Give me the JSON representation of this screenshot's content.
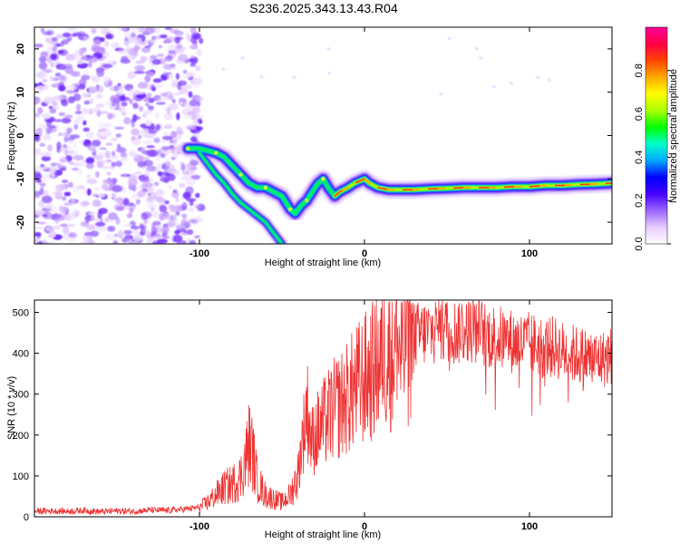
{
  "title": "S236.2025.343.13.43.R04",
  "chart_data": [
    {
      "type": "heatmap",
      "name": "spectrogram",
      "xlabel": "Height of straight line (km)",
      "ylabel": "Frequency (Hz)",
      "xlim": [
        -200,
        150
      ],
      "ylim": [
        -25,
        25
      ],
      "xticks": [
        -100,
        0,
        100
      ],
      "yticks": [
        -20,
        -10,
        0,
        10,
        20
      ],
      "colorbar": {
        "label": "Normalized spectral amplitude",
        "ticks": [
          0.0,
          0.2,
          0.4,
          0.6,
          0.8
        ],
        "range": [
          0,
          1
        ],
        "colors": [
          "#ffffff",
          "#e6ccff",
          "#9966ff",
          "#4400ff",
          "#0000ff",
          "#00aaff",
          "#00ffcc",
          "#00ff00",
          "#aaff00",
          "#ffff00",
          "#ffaa00",
          "#ff4400",
          "#ff0044",
          "#ff0099"
        ]
      },
      "ridge": {
        "x": [
          -107,
          -100,
          -95,
          -90,
          -85,
          -80,
          -75,
          -70,
          -65,
          -60,
          -55,
          -50,
          -45,
          -42,
          -38,
          -35,
          -30,
          -28,
          -25,
          -22,
          -18,
          -15,
          -10,
          -6,
          -3,
          0,
          3,
          8,
          15,
          20,
          30,
          40,
          50,
          60,
          70,
          80,
          90,
          100,
          110,
          120,
          130,
          140,
          150
        ],
        "y": [
          -3,
          -3,
          -3.5,
          -4,
          -5,
          -7,
          -9,
          -11,
          -12,
          -12,
          -13,
          -14,
          -17,
          -18,
          -16,
          -15,
          -12,
          -11,
          -10,
          -12,
          -14,
          -13,
          -12,
          -11,
          -10.5,
          -10,
          -11,
          -12,
          -12.5,
          -12.5,
          -12.5,
          -12.3,
          -12.2,
          -12,
          -12,
          -12,
          -11.8,
          -11.8,
          -11.5,
          -11.5,
          -11.3,
          -11.2,
          -11
        ]
      },
      "branch": {
        "x": [
          -100,
          -95,
          -90,
          -85,
          -80,
          -75,
          -70,
          -65,
          -60,
          -55,
          -50
        ],
        "y": [
          -4,
          -6.5,
          -9,
          -11,
          -13.5,
          -15.5,
          -17,
          -18.5,
          -20,
          -22.5,
          -25
        ]
      },
      "noise_region_x": [
        -200,
        -107
      ]
    },
    {
      "type": "line",
      "name": "snr",
      "xlabel": "Height of straight line (km)",
      "ylabel": "SNR (10 * v/v)",
      "xlim": [
        -200,
        150
      ],
      "ylim": [
        0,
        530
      ],
      "xticks": [
        -100,
        0,
        100
      ],
      "yticks": [
        0,
        100,
        200,
        300,
        400,
        500
      ],
      "color": "#ee3333",
      "series": [
        {
          "name": "SNR",
          "x": [
            -200,
            -190,
            -180,
            -170,
            -160,
            -150,
            -140,
            -130,
            -120,
            -110,
            -105,
            -100,
            -95,
            -90,
            -85,
            -80,
            -75,
            -72,
            -70,
            -68,
            -65,
            -60,
            -55,
            -50,
            -45,
            -40,
            -38,
            -36,
            -35,
            -32,
            -30,
            -25,
            -20,
            -15,
            -10,
            -5,
            0,
            5,
            10,
            15,
            20,
            25,
            30,
            35,
            40,
            45,
            50,
            55,
            60,
            65,
            70,
            75,
            80,
            85,
            90,
            95,
            100,
            105,
            110,
            115,
            120,
            125,
            130,
            135,
            140,
            145,
            150
          ],
          "y": [
            15,
            16,
            15,
            17,
            14,
            16,
            15,
            18,
            17,
            20,
            22,
            25,
            40,
            60,
            80,
            90,
            110,
            160,
            200,
            180,
            100,
            60,
            50,
            40,
            60,
            120,
            200,
            250,
            300,
            200,
            220,
            250,
            280,
            300,
            320,
            350,
            370,
            390,
            420,
            440,
            450,
            455,
            460,
            465,
            470,
            475,
            480,
            470,
            475,
            480,
            470,
            460,
            455,
            450,
            445,
            440,
            440,
            435,
            430,
            430,
            420,
            415,
            410,
            405,
            400,
            400,
            410
          ]
        }
      ]
    }
  ]
}
